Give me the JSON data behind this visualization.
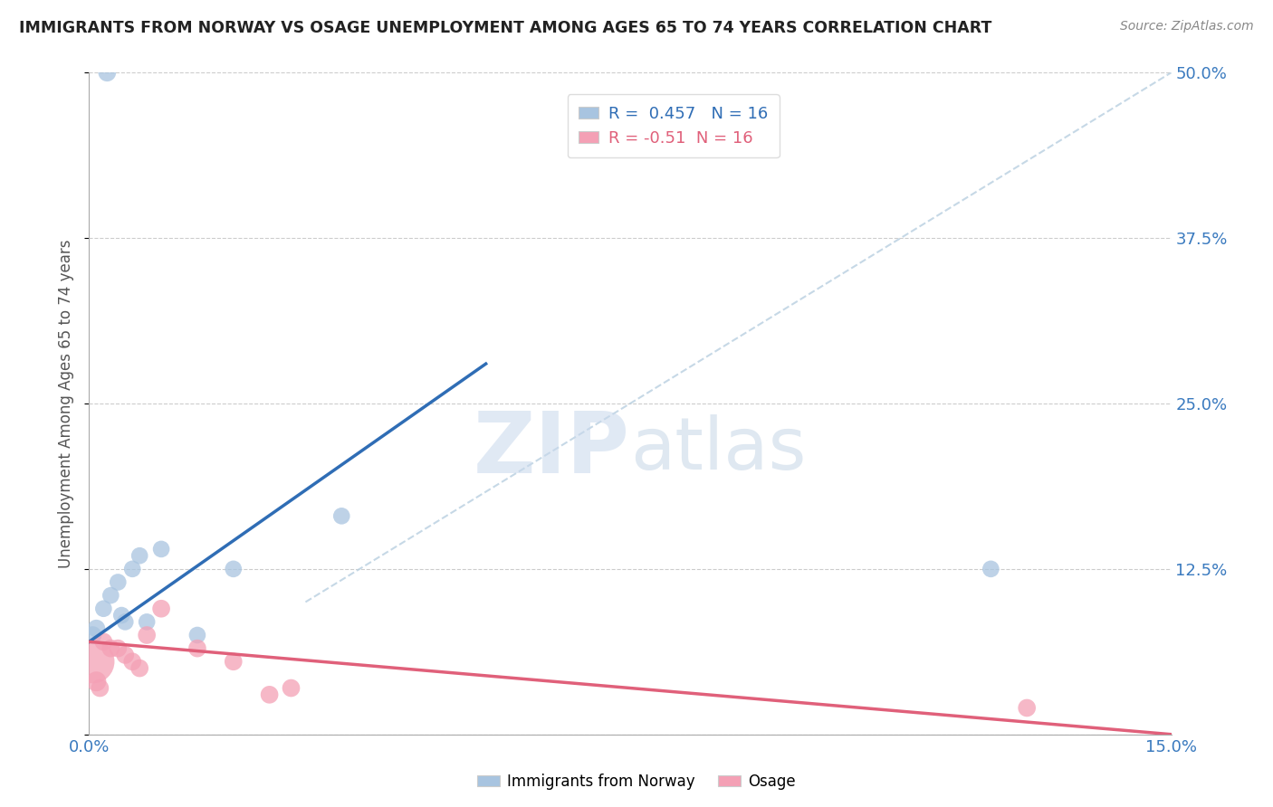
{
  "title": "IMMIGRANTS FROM NORWAY VS OSAGE UNEMPLOYMENT AMONG AGES 65 TO 74 YEARS CORRELATION CHART",
  "source": "Source: ZipAtlas.com",
  "ylabel": "Unemployment Among Ages 65 to 74 years",
  "x_min": 0.0,
  "x_max": 15.0,
  "y_min": 0.0,
  "y_max": 50.0,
  "x_ticks": [
    0.0,
    15.0
  ],
  "y_ticks": [
    0.0,
    12.5,
    25.0,
    37.5,
    50.0
  ],
  "norway_R": 0.457,
  "norway_N": 16,
  "osage_R": -0.51,
  "osage_N": 16,
  "norway_color": "#a8c4e0",
  "osage_color": "#f4a0b5",
  "norway_line_color": "#2f6db5",
  "osage_line_color": "#e0607a",
  "background_color": "#ffffff",
  "watermark_zip": "ZIP",
  "watermark_atlas": "atlas",
  "norway_points": [
    [
      0.05,
      7.5
    ],
    [
      0.1,
      8.0
    ],
    [
      0.2,
      9.5
    ],
    [
      0.3,
      10.5
    ],
    [
      0.4,
      11.5
    ],
    [
      0.45,
      9.0
    ],
    [
      0.5,
      8.5
    ],
    [
      0.6,
      12.5
    ],
    [
      0.7,
      13.5
    ],
    [
      0.8,
      8.5
    ],
    [
      1.0,
      14.0
    ],
    [
      1.5,
      7.5
    ],
    [
      2.0,
      12.5
    ],
    [
      3.5,
      16.5
    ],
    [
      0.25,
      50.0
    ],
    [
      12.5,
      12.5
    ]
  ],
  "osage_points": [
    [
      0.05,
      5.5
    ],
    [
      0.1,
      4.0
    ],
    [
      0.15,
      3.5
    ],
    [
      0.2,
      7.0
    ],
    [
      0.3,
      6.5
    ],
    [
      0.4,
      6.5
    ],
    [
      0.5,
      6.0
    ],
    [
      0.6,
      5.5
    ],
    [
      0.7,
      5.0
    ],
    [
      0.8,
      7.5
    ],
    [
      1.0,
      9.5
    ],
    [
      1.5,
      6.5
    ],
    [
      2.0,
      5.5
    ],
    [
      2.5,
      3.0
    ],
    [
      2.8,
      3.5
    ],
    [
      13.0,
      2.0
    ]
  ],
  "norway_sizes": [
    200,
    200,
    180,
    180,
    180,
    180,
    180,
    180,
    180,
    180,
    180,
    180,
    180,
    180,
    200,
    180
  ],
  "osage_sizes": [
    1200,
    250,
    200,
    200,
    200,
    200,
    200,
    200,
    200,
    200,
    200,
    200,
    200,
    200,
    200,
    200
  ],
  "norway_trendline_x": [
    0.0,
    5.5
  ],
  "norway_trendline_y": [
    7.0,
    28.0
  ],
  "osage_trendline_x": [
    0.0,
    15.0
  ],
  "osage_trendline_y": [
    7.0,
    0.0
  ],
  "diagonal_trendline_x": [
    3.0,
    15.0
  ],
  "diagonal_trendline_y": [
    10.0,
    50.0
  ]
}
